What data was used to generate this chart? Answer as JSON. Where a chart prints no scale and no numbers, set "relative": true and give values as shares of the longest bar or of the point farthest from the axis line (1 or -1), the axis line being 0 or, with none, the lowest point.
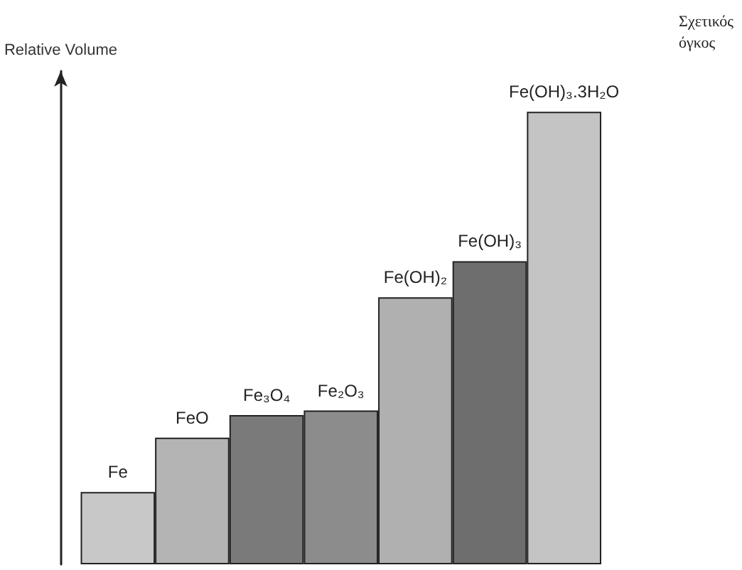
{
  "chart_data": {
    "type": "bar",
    "relative": true,
    "ylabel": "Relative Volume",
    "annotations": [
      "Σχετικός όγκος"
    ],
    "categories": [
      "Fe",
      "FeO",
      "Fe₃O₄",
      "Fe₂O₃",
      "Fe(OH)₂",
      "Fe(OH)₃",
      "Fe(OH)₃.3H₂O"
    ],
    "values": [
      0.16,
      0.28,
      0.33,
      0.34,
      0.59,
      0.67,
      1
    ],
    "colors": [
      "#c8c8c8",
      "#b4b4b4",
      "#7a7a7a",
      "#8c8c8c",
      "#b0b0b0",
      "#6e6e6e",
      "#c4c4c4"
    ]
  }
}
